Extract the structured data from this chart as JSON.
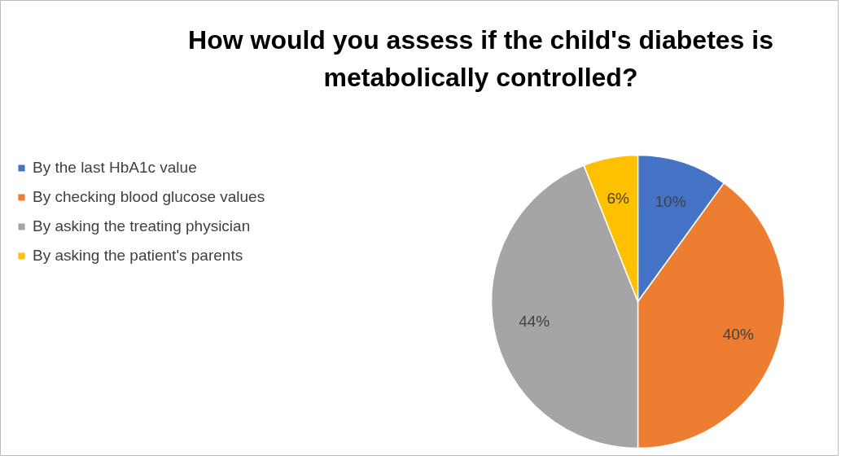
{
  "chart_data": {
    "type": "pie",
    "title": "How would you assess if the child's diabetes is metabolically controlled?",
    "categories": [
      "By the last HbA1c value",
      "By checking blood glucose values",
      "By asking the treating physician",
      "By asking the patient's parents"
    ],
    "values": [
      10,
      40,
      44,
      6
    ],
    "colors": [
      "#4472c4",
      "#ed7d31",
      "#a5a5a5",
      "#ffc000"
    ],
    "value_labels": [
      "10%",
      "40%",
      "44%",
      "6%"
    ],
    "legend": "left"
  }
}
